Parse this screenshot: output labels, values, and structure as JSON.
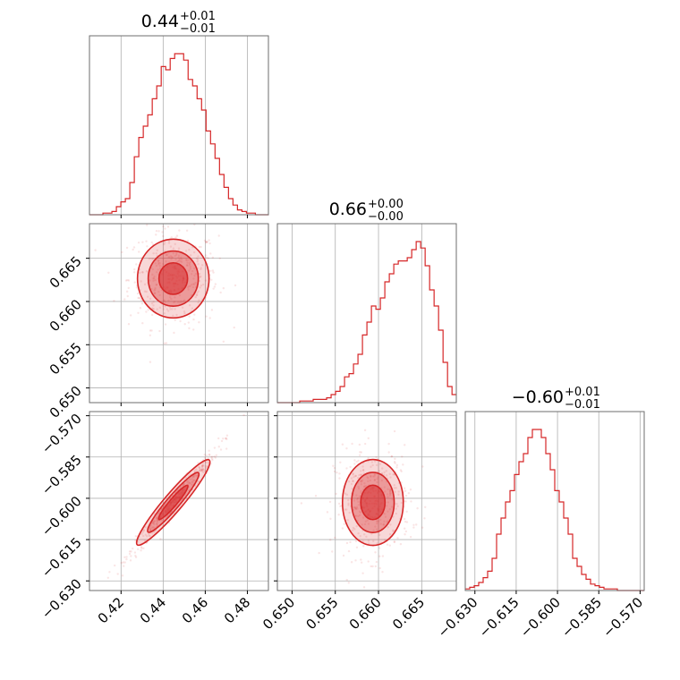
{
  "chart_data": {
    "type": "corner",
    "color": "#d62728",
    "parameters": [
      {
        "title": {
          "value": "0.44",
          "plus": "+0.01",
          "minus": "−0.01"
        },
        "range": [
          0.405,
          0.49
        ],
        "ticks": [
          0.42,
          0.44,
          0.46,
          0.48
        ],
        "tick_labels": [
          "0.42",
          "0.44",
          "0.46",
          "0.48"
        ]
      },
      {
        "title": {
          "value": "0.66",
          "plus": "+0.00",
          "minus": "−0.00"
        },
        "range": [
          0.6483,
          0.669
        ],
        "ticks": [
          0.65,
          0.655,
          0.66,
          0.665
        ],
        "tick_labels": [
          "0.650",
          "0.655",
          "0.660",
          "0.665"
        ]
      },
      {
        "title": {
          "value": "−0.60",
          "plus": "+0.01",
          "minus": "−0.01"
        },
        "range": [
          -0.6335,
          -0.5685
        ],
        "ticks": [
          -0.63,
          -0.615,
          -0.6,
          -0.585,
          -0.57
        ],
        "tick_labels": [
          "−0.630",
          "−0.615",
          "−0.600",
          "−0.585",
          "−0.570"
        ]
      }
    ],
    "histograms": [
      {
        "param": 0,
        "bin_start": 0.405,
        "bin_width": 0.00213,
        "counts": [
          0,
          0,
          0,
          1,
          1,
          2,
          5,
          8,
          10,
          20,
          36,
          48,
          55,
          62,
          72,
          80,
          92,
          90,
          97,
          100,
          100,
          96,
          84,
          80,
          72,
          65,
          52,
          44,
          35,
          25,
          17,
          10,
          6,
          3,
          2,
          1,
          1,
          0,
          0,
          0
        ]
      },
      {
        "param": 1,
        "bin_start": 0.6483,
        "bin_width": 0.000518,
        "counts": [
          0,
          0,
          0,
          0,
          0,
          1,
          1,
          1,
          2,
          2,
          2,
          3,
          5,
          7,
          10,
          16,
          18,
          24,
          30,
          42,
          50,
          60,
          58,
          65,
          75,
          80,
          86,
          88,
          88,
          90,
          95,
          100,
          96,
          85,
          70,
          60,
          45,
          25,
          10,
          5
        ]
      },
      {
        "param": 2,
        "bin_start": -0.6335,
        "bin_width": 0.001625,
        "counts": [
          1,
          2,
          3,
          5,
          8,
          12,
          20,
          35,
          45,
          55,
          62,
          72,
          80,
          85,
          95,
          100,
          100,
          95,
          85,
          75,
          62,
          55,
          45,
          35,
          20,
          15,
          10,
          7,
          4,
          3,
          2,
          1,
          1,
          1,
          0,
          0,
          0,
          0,
          0,
          0
        ]
      }
    ],
    "contours": [
      {
        "x_param": 0,
        "y_param": 1,
        "correlation": 0.0
      },
      {
        "x_param": 0,
        "y_param": 2,
        "correlation": 0.98
      },
      {
        "x_param": 1,
        "y_param": 2,
        "correlation": 0.05
      }
    ],
    "grid": true
  }
}
